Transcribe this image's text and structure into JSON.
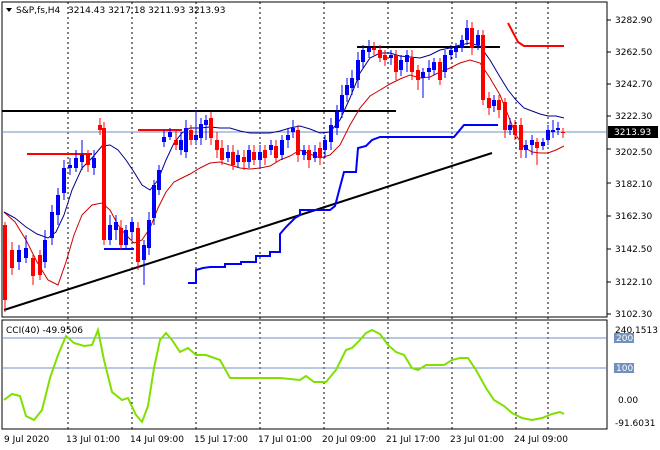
{
  "header": {
    "symbol_label": "S&P,fs,H4",
    "ohlc_label": "3214.43 3217.18 3211.93 3213.93"
  },
  "price_axis": {
    "ticks": [
      "3282.90",
      "3262.50",
      "3242.70",
      "3222.30",
      "3202.50",
      "3182.10",
      "3162.30",
      "3142.50",
      "3122.10",
      "3102.30"
    ],
    "current_price_label": "3213.93"
  },
  "cci_panel": {
    "title": "CCI(40) -49.9506",
    "axis_labels": [
      "240.1513",
      "200",
      "100",
      "0.00",
      "-91.6031"
    ],
    "levels": [
      200,
      100
    ]
  },
  "time_axis": {
    "labels": [
      "9 Jul 2020",
      "13 Jul 01:00",
      "14 Jul 09:00",
      "15 Jul 17:00",
      "17 Jul 01:00",
      "20 Jul 09:00",
      "21 Jul 17:00",
      "23 Jul 01:00",
      "24 Jul 09:00"
    ]
  },
  "colors": {
    "bull_candle": "#0000ff",
    "bear_candle": "#ff0000",
    "ma_fast": "#cc0000",
    "ma_slow": "#00008b",
    "stop_blue": "#0000ff",
    "cci_line": "#80e000",
    "level_line": "#7090c0",
    "trendline": "#000000"
  }
}
